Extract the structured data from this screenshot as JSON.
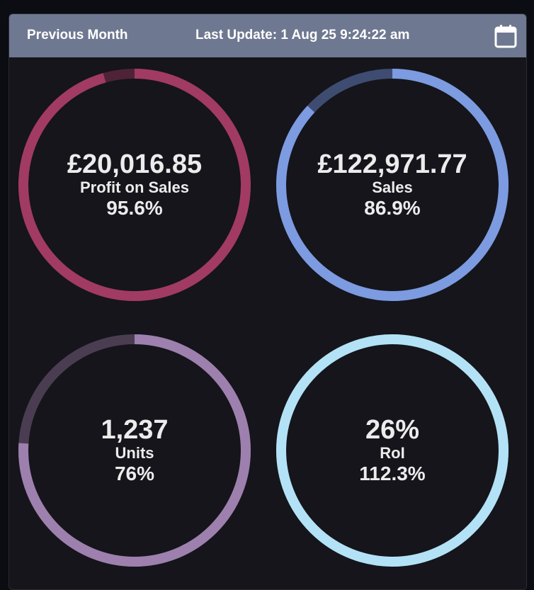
{
  "header": {
    "period_label": "Previous Month",
    "last_update": "Last Update: 1 Aug 25 9:24:22 am",
    "calendar_icon": "calendar-icon"
  },
  "gauges": [
    {
      "value": "£20,016.85",
      "label": "Profit on Sales",
      "percent_text": "95.6%",
      "fill_fraction": 0.956,
      "color": "#a13b63",
      "track_color": "#4e2337"
    },
    {
      "value": "£122,971.77",
      "label": "Sales",
      "percent_text": "86.9%",
      "fill_fraction": 0.869,
      "color": "#7c9be0",
      "track_color": "#3f4c71"
    },
    {
      "value": "1,237",
      "label": "Units",
      "percent_text": "76%",
      "fill_fraction": 0.76,
      "color": "#9d80ad",
      "track_color": "#4a3d52"
    },
    {
      "value": "26%",
      "label": "RoI",
      "percent_text": "112.3%",
      "fill_fraction": 1.0,
      "color": "#b3e2f6",
      "track_color": "#4c6570"
    }
  ]
}
